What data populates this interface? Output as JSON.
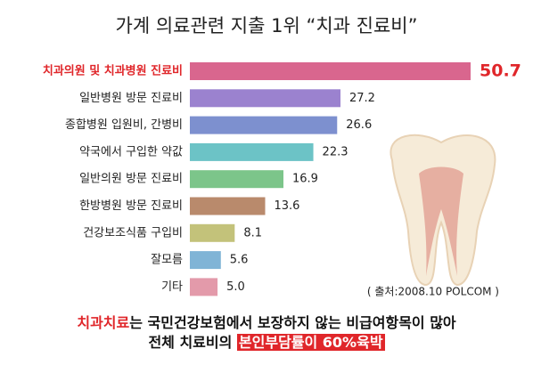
{
  "chart_data": {
    "type": "bar",
    "orientation": "horizontal",
    "title": "가계 의료관련 지출 1위 “치과 진료비”",
    "categories": [
      "치과의원 및 치과병원 진료비",
      "일반병원 방문 진료비",
      "종합병원 입원비, 간병비",
      "약국에서 구입한 약값",
      "일반의원 방문 진료비",
      "한방병원 방문 진료비",
      "건강보조식품 구입비",
      "잘모름",
      "기타"
    ],
    "values": [
      50.7,
      27.2,
      26.6,
      22.3,
      16.9,
      13.6,
      8.1,
      5.6,
      5.0
    ],
    "value_labels": [
      "50.7",
      "27.2",
      "26.6",
      "22.3",
      "16.9",
      "13.6",
      "8.1",
      "5.6",
      "5.0"
    ],
    "colors": [
      "#d9668e",
      "#9b82cf",
      "#7d90cf",
      "#6cc3c6",
      "#7cc58a",
      "#b98a6c",
      "#c3c27a",
      "#80b4d6",
      "#e39aaa"
    ],
    "source": "( 출처:2008.10 POLCOM )",
    "footer_lines": [
      [
        "치과치료",
        "는 국민건강보험에서 보장하지 않는 비급여항목이 많아"
      ],
      [
        "전체 치료비의 ",
        "본인부담률이 60%육박"
      ]
    ]
  }
}
